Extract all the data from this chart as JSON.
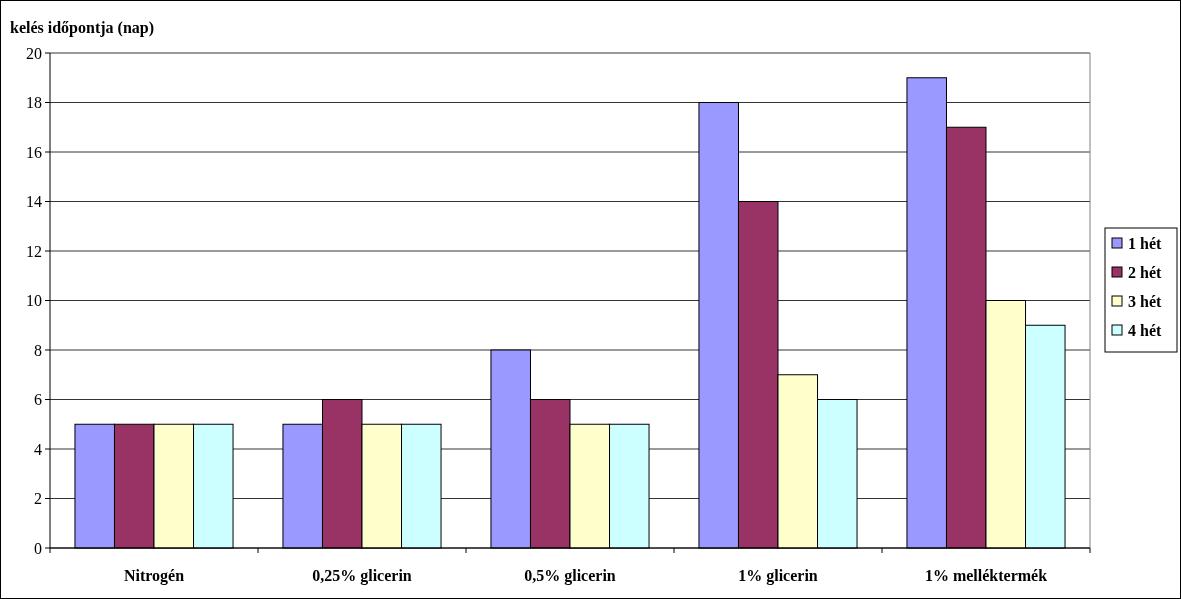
{
  "chart_data": {
    "type": "bar",
    "ylabel": "kelés időpontja (nap)",
    "categories": [
      "Nitrogén",
      "0,25% glicerin",
      "0,5% glicerin",
      "1% glicerin",
      "1% melléktermék"
    ],
    "series": [
      {
        "name": "1 hét",
        "color": "#9999ff",
        "values": [
          5,
          5,
          8,
          18,
          19
        ]
      },
      {
        "name": "2 hét",
        "color": "#993366",
        "values": [
          5,
          6,
          6,
          14,
          17
        ]
      },
      {
        "name": "3 hét",
        "color": "#ffffcc",
        "values": [
          5,
          5,
          5,
          7,
          10
        ]
      },
      {
        "name": "4 hét",
        "color": "#ccffff",
        "values": [
          5,
          5,
          5,
          6,
          9
        ]
      }
    ],
    "ylim": [
      0,
      20
    ],
    "yticks": [
      0,
      2,
      4,
      6,
      8,
      10,
      12,
      14,
      16,
      18,
      20
    ],
    "grid": "y",
    "legend": "right"
  }
}
